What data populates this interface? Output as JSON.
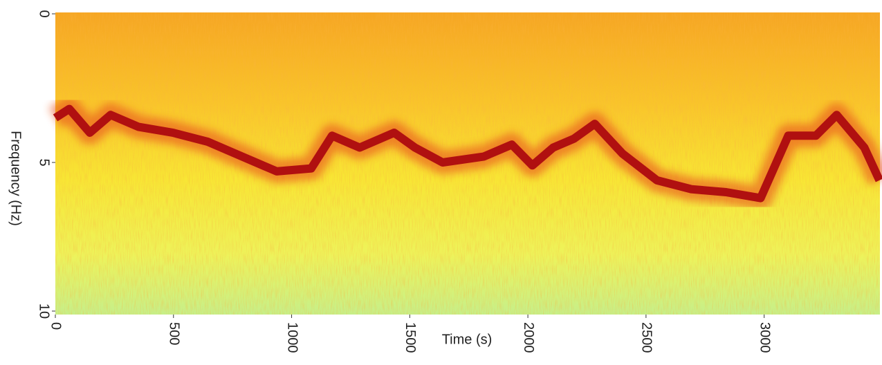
{
  "chart_data": {
    "type": "spectrogram",
    "x_label": "Time (s)",
    "y_label": "Frequency (Hz)",
    "x": [
      0,
      59,
      146,
      234,
      351,
      498,
      644,
      790,
      937,
      1083,
      1171,
      1288,
      1434,
      1522,
      1639,
      1814,
      1932,
      2019,
      2107,
      2195,
      2283,
      2400,
      2546,
      2692,
      2839,
      2985,
      3102,
      3219,
      3307,
      3424,
      3488
    ],
    "values": [
      3.5,
      3.2,
      4.0,
      3.4,
      3.8,
      4.0,
      4.3,
      4.8,
      5.3,
      5.2,
      4.1,
      4.5,
      4.0,
      4.5,
      5.0,
      4.8,
      4.4,
      5.1,
      4.5,
      4.2,
      3.7,
      4.7,
      5.6,
      5.9,
      6.0,
      6.2,
      4.1,
      4.1,
      3.4,
      4.5,
      5.6
    ],
    "color": "#b01010",
    "xlim": [
      0,
      3490
    ],
    "xticks": [
      0,
      500,
      1000,
      1500,
      2000,
      2500,
      3000
    ],
    "ylim": [
      0,
      10
    ],
    "yticks": [
      0,
      5,
      10
    ],
    "y_inverted": true
  }
}
